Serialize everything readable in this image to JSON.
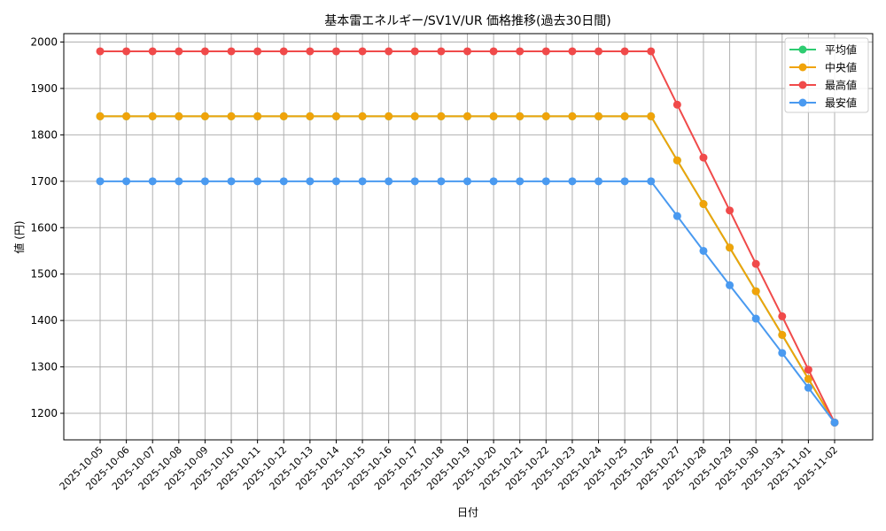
{
  "chart_data": {
    "type": "line",
    "title": "基本雷エネルギー/SV1V/UR 価格推移(過去30日間)",
    "xlabel": "日付",
    "ylabel": "値 (円)",
    "ylim": [
      1140,
      2020
    ],
    "yticks": [
      1200,
      1300,
      1400,
      1500,
      1600,
      1700,
      1800,
      1900,
      2000
    ],
    "grid": true,
    "legend_position": "upper right",
    "categories": [
      "2025-10-05",
      "2025-10-06",
      "2025-10-07",
      "2025-10-08",
      "2025-10-09",
      "2025-10-10",
      "2025-10-11",
      "2025-10-12",
      "2025-10-13",
      "2025-10-14",
      "2025-10-15",
      "2025-10-16",
      "2025-10-17",
      "2025-10-18",
      "2025-10-19",
      "2025-10-20",
      "2025-10-21",
      "2025-10-22",
      "2025-10-23",
      "2025-10-24",
      "2025-10-25",
      "2025-10-26",
      "2025-10-27",
      "2025-10-28",
      "2025-10-29",
      "2025-10-30",
      "2025-10-31",
      "2025-11-01",
      "2025-11-02"
    ],
    "series": [
      {
        "name": "平均値",
        "color": "#2ecc71",
        "values": [
          1840,
          1840,
          1840,
          1840,
          1840,
          1840,
          1840,
          1840,
          1840,
          1840,
          1840,
          1840,
          1840,
          1840,
          1840,
          1840,
          1840,
          1840,
          1840,
          1840,
          1840,
          1840,
          1745,
          1651,
          1557,
          1463,
          1369,
          1274,
          1180
        ]
      },
      {
        "name": "中央値",
        "color": "#f0a30a",
        "values": [
          1840,
          1840,
          1840,
          1840,
          1840,
          1840,
          1840,
          1840,
          1840,
          1840,
          1840,
          1840,
          1840,
          1840,
          1840,
          1840,
          1840,
          1840,
          1840,
          1840,
          1840,
          1840,
          1745,
          1651,
          1557,
          1463,
          1369,
          1274,
          1180
        ]
      },
      {
        "name": "最高値",
        "color": "#f04a4a",
        "values": [
          1980,
          1980,
          1980,
          1980,
          1980,
          1980,
          1980,
          1980,
          1980,
          1980,
          1980,
          1980,
          1980,
          1980,
          1980,
          1980,
          1980,
          1980,
          1980,
          1980,
          1980,
          1980,
          1865,
          1751,
          1637,
          1522,
          1409,
          1294,
          1180
        ]
      },
      {
        "name": "最安値",
        "color": "#4a9af0",
        "values": [
          1700,
          1700,
          1700,
          1700,
          1700,
          1700,
          1700,
          1700,
          1700,
          1700,
          1700,
          1700,
          1700,
          1700,
          1700,
          1700,
          1700,
          1700,
          1700,
          1700,
          1700,
          1700,
          1625,
          1550,
          1476,
          1404,
          1330,
          1255,
          1180
        ]
      }
    ]
  }
}
